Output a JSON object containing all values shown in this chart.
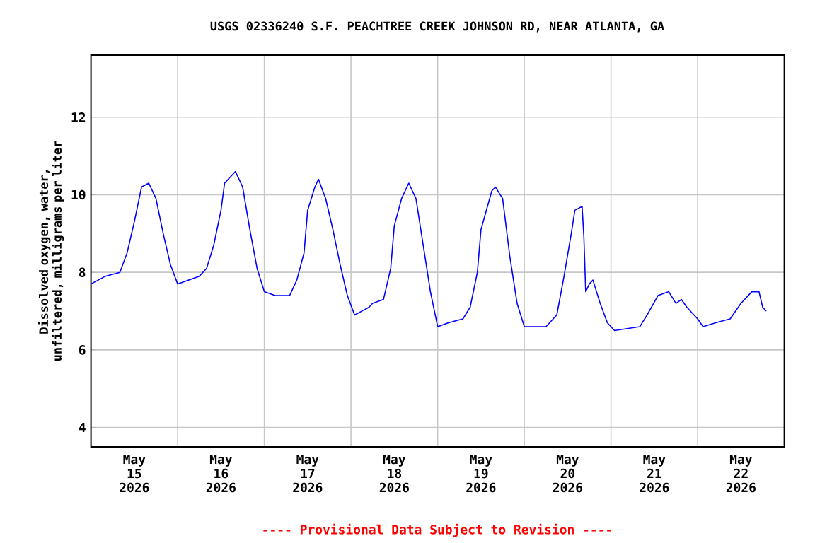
{
  "chart_data": {
    "type": "line",
    "title": "USGS 02336240 S.F. PEACHTREE CREEK JOHNSON RD, NEAR ATLANTA, GA",
    "ylabel": "Dissolved oxygen, water, unfiltered, milligrams per liter",
    "annotations": [
      "---- Provisional Data Subject to Revision ----"
    ],
    "x": [
      "2026-05-15T00:00",
      "2026-05-15T02:00",
      "2026-05-15T04:00",
      "2026-05-15T08:00",
      "2026-05-15T10:00",
      "2026-05-15T12:00",
      "2026-05-15T14:00",
      "2026-05-15T16:00",
      "2026-05-15T18:00",
      "2026-05-15T20:00",
      "2026-05-15T22:00",
      "2026-05-16T00:00",
      "2026-05-16T03:00",
      "2026-05-16T06:00",
      "2026-05-16T08:00",
      "2026-05-16T10:00",
      "2026-05-16T12:00",
      "2026-05-16T13:00",
      "2026-05-16T16:00",
      "2026-05-16T18:00",
      "2026-05-16T20:00",
      "2026-05-16T22:00",
      "2026-05-17T00:00",
      "2026-05-17T03:00",
      "2026-05-17T07:00",
      "2026-05-17T09:00",
      "2026-05-17T11:00",
      "2026-05-17T12:00",
      "2026-05-17T14:00",
      "2026-05-17T15:00",
      "2026-05-17T17:00",
      "2026-05-17T19:00",
      "2026-05-17T21:00",
      "2026-05-17T23:00",
      "2026-05-18T01:00",
      "2026-05-18T05:00",
      "2026-05-18T06:00",
      "2026-05-18T09:00",
      "2026-05-18T11:00",
      "2026-05-18T12:00",
      "2026-05-18T14:00",
      "2026-05-18T16:00",
      "2026-05-18T18:00",
      "2026-05-18T20:00",
      "2026-05-18T22:00",
      "2026-05-19T00:00",
      "2026-05-19T03:00",
      "2026-05-19T07:00",
      "2026-05-19T09:00",
      "2026-05-19T11:00",
      "2026-05-19T12:00",
      "2026-05-19T15:00",
      "2026-05-19T16:00",
      "2026-05-19T18:00",
      "2026-05-19T20:00",
      "2026-05-19T22:00",
      "2026-05-20T00:00",
      "2026-05-20T04:00",
      "2026-05-20T06:00",
      "2026-05-20T09:00",
      "2026-05-20T11:00",
      "2026-05-20T13:00",
      "2026-05-20T14:00",
      "2026-05-20T16:00",
      "2026-05-20T16:30",
      "2026-05-20T17:00",
      "2026-05-20T18:00",
      "2026-05-20T19:00",
      "2026-05-20T21:00",
      "2026-05-20T23:00",
      "2026-05-21T01:00",
      "2026-05-21T08:00",
      "2026-05-21T10:00",
      "2026-05-21T13:00",
      "2026-05-21T16:00",
      "2026-05-21T18:00",
      "2026-05-21T19:30",
      "2026-05-21T21:00",
      "2026-05-22T00:00",
      "2026-05-22T01:30",
      "2026-05-22T05:00",
      "2026-05-22T09:00",
      "2026-05-22T12:00",
      "2026-05-22T15:00",
      "2026-05-22T17:00",
      "2026-05-22T18:00",
      "2026-05-22T19:00"
    ],
    "series": [
      {
        "color": "#0000ff",
        "values": [
          7.7,
          7.8,
          7.9,
          8.0,
          8.5,
          9.3,
          10.2,
          10.3,
          9.9,
          9.0,
          8.2,
          7.7,
          7.8,
          7.9,
          8.1,
          8.7,
          9.6,
          10.3,
          10.6,
          10.2,
          9.1,
          8.1,
          7.5,
          7.4,
          7.4,
          7.8,
          8.5,
          9.6,
          10.2,
          10.4,
          9.9,
          9.1,
          8.2,
          7.4,
          6.9,
          7.1,
          7.2,
          7.3,
          8.1,
          9.2,
          9.9,
          10.3,
          9.9,
          8.7,
          7.5,
          6.6,
          6.7,
          6.8,
          7.1,
          8.0,
          9.1,
          10.1,
          10.2,
          9.9,
          8.4,
          7.2,
          6.6,
          6.6,
          6.6,
          6.9,
          7.9,
          9.0,
          9.6,
          9.7,
          8.9,
          7.5,
          7.7,
          7.8,
          7.2,
          6.7,
          6.5,
          6.6,
          6.9,
          7.4,
          7.5,
          7.2,
          7.3,
          7.1,
          6.8,
          6.6,
          6.7,
          6.8,
          7.2,
          7.5,
          7.5,
          7.1,
          7.0
        ]
      }
    ],
    "xlim": [
      "2026-05-15T00:00",
      "2026-05-23T00:00"
    ],
    "xticks": [
      {
        "value": "2026-05-15T12:00",
        "label": "May 15 2026"
      },
      {
        "value": "2026-05-16T00:00",
        "label": null
      },
      {
        "value": "2026-05-16T12:00",
        "label": "May 16 2026"
      },
      {
        "value": "2026-05-17T00:00",
        "label": null
      },
      {
        "value": "2026-05-17T12:00",
        "label": "May 17 2026"
      },
      {
        "value": "2026-05-18T00:00",
        "label": null
      },
      {
        "value": "2026-05-18T12:00",
        "label": "May 18 2026"
      },
      {
        "value": "2026-05-19T00:00",
        "label": null
      },
      {
        "value": "2026-05-19T12:00",
        "label": "May 19 2026"
      },
      {
        "value": "2026-05-20T00:00",
        "label": null
      },
      {
        "value": "2026-05-20T12:00",
        "label": "May 20 2026"
      },
      {
        "value": "2026-05-21T00:00",
        "label": null
      },
      {
        "value": "2026-05-21T12:00",
        "label": "May 21 2026"
      },
      {
        "value": "2026-05-22T00:00",
        "label": null
      },
      {
        "value": "2026-05-22T12:00",
        "label": "May 22 2026"
      }
    ],
    "ylim": [
      3.5,
      13.6
    ],
    "yticks": [
      4,
      6,
      8,
      10,
      12
    ],
    "grid": true
  }
}
